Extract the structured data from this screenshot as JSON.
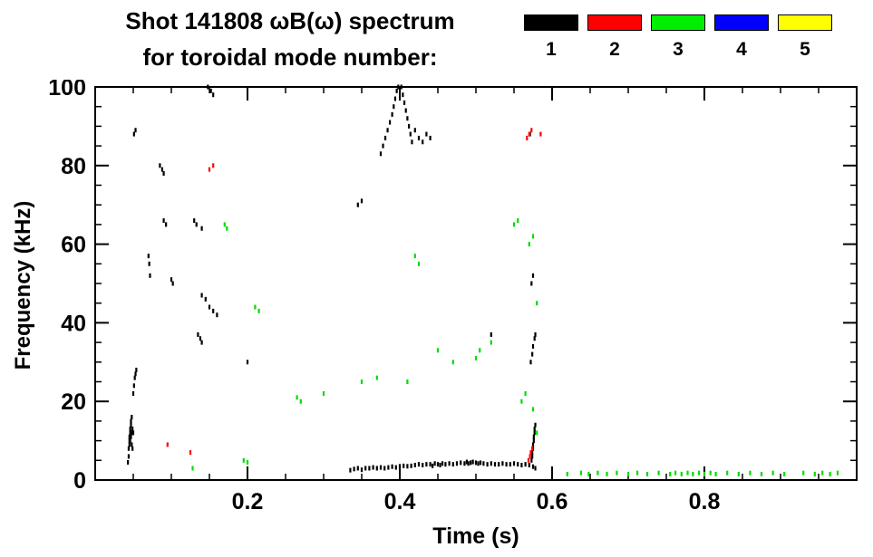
{
  "header": {
    "title_line1": "Shot 141808 ωB(ω) spectrum",
    "title_line2": "for toroidal mode number:"
  },
  "legend": {
    "items": [
      {
        "label": "1",
        "color": "#000000"
      },
      {
        "label": "2",
        "color": "#ff0000"
      },
      {
        "label": "3",
        "color": "#00ee00"
      },
      {
        "label": "4",
        "color": "#0000ff"
      },
      {
        "label": "5",
        "color": "#ffff00"
      }
    ]
  },
  "chart_data": {
    "type": "scatter",
    "title": "Shot 141808 ωB(ω) spectrum for toroidal mode number: 1 2 3 4 5",
    "xlabel": "Time (s)",
    "ylabel": "Frequency (kHz)",
    "xlim": [
      0,
      1.0
    ],
    "ylim": [
      0,
      100
    ],
    "xticks": [
      0.2,
      0.4,
      0.6,
      0.8
    ],
    "xtick_labels": [
      "0.2",
      "0.4",
      "0.6",
      "0.8"
    ],
    "x_minor_step": 0.05,
    "yticks": [
      0,
      20,
      40,
      60,
      80,
      100
    ],
    "ytick_labels": [
      "0",
      "20",
      "40",
      "60",
      "80",
      "100"
    ],
    "y_minor_step": 5,
    "grid": false,
    "legend_position": "top-right",
    "series": [
      {
        "name": "n=1",
        "color": "#000000",
        "points": [
          [
            0.043,
            4.5
          ],
          [
            0.044,
            6
          ],
          [
            0.044,
            8
          ],
          [
            0.045,
            9
          ],
          [
            0.045,
            10
          ],
          [
            0.045,
            11
          ],
          [
            0.046,
            12
          ],
          [
            0.046,
            13
          ],
          [
            0.047,
            14
          ],
          [
            0.047,
            15
          ],
          [
            0.048,
            16
          ],
          [
            0.046,
            10
          ],
          [
            0.047,
            11
          ],
          [
            0.048,
            12
          ],
          [
            0.048,
            9
          ],
          [
            0.049,
            8
          ],
          [
            0.049,
            13
          ],
          [
            0.05,
            12
          ],
          [
            0.05,
            22
          ],
          [
            0.051,
            24
          ],
          [
            0.052,
            26
          ],
          [
            0.053,
            27
          ],
          [
            0.054,
            28
          ],
          [
            0.051,
            88
          ],
          [
            0.053,
            89
          ],
          [
            0.07,
            57
          ],
          [
            0.071,
            55
          ],
          [
            0.072,
            52
          ],
          [
            0.085,
            80
          ],
          [
            0.088,
            79
          ],
          [
            0.09,
            78
          ],
          [
            0.09,
            66
          ],
          [
            0.093,
            65
          ],
          [
            0.1,
            51
          ],
          [
            0.102,
            50
          ],
          [
            0.13,
            66
          ],
          [
            0.133,
            65
          ],
          [
            0.14,
            64
          ],
          [
            0.148,
            100
          ],
          [
            0.152,
            99
          ],
          [
            0.155,
            98
          ],
          [
            0.14,
            47
          ],
          [
            0.145,
            46
          ],
          [
            0.15,
            44
          ],
          [
            0.155,
            43
          ],
          [
            0.16,
            42
          ],
          [
            0.135,
            37
          ],
          [
            0.138,
            36
          ],
          [
            0.14,
            35
          ],
          [
            0.2,
            30
          ],
          [
            0.345,
            70
          ],
          [
            0.35,
            71
          ],
          [
            0.375,
            83
          ],
          [
            0.378,
            85
          ],
          [
            0.381,
            87
          ],
          [
            0.384,
            89
          ],
          [
            0.387,
            91
          ],
          [
            0.39,
            93
          ],
          [
            0.392,
            95
          ],
          [
            0.394,
            97
          ],
          [
            0.396,
            99
          ],
          [
            0.398,
            100
          ],
          [
            0.402,
            100
          ],
          [
            0.404,
            98
          ],
          [
            0.406,
            96
          ],
          [
            0.408,
            94
          ],
          [
            0.41,
            92
          ],
          [
            0.412,
            90
          ],
          [
            0.414,
            88
          ],
          [
            0.416,
            86
          ],
          [
            0.42,
            89
          ],
          [
            0.425,
            87
          ],
          [
            0.43,
            86
          ],
          [
            0.435,
            88
          ],
          [
            0.44,
            87
          ],
          [
            0.335,
            2.5
          ],
          [
            0.34,
            2.8
          ],
          [
            0.345,
            3
          ],
          [
            0.35,
            2.6
          ],
          [
            0.355,
            3
          ],
          [
            0.36,
            3
          ],
          [
            0.365,
            3.2
          ],
          [
            0.37,
            3
          ],
          [
            0.375,
            3.2
          ],
          [
            0.38,
            3
          ],
          [
            0.385,
            3.2
          ],
          [
            0.39,
            3.4
          ],
          [
            0.395,
            3.2
          ],
          [
            0.4,
            3.5
          ],
          [
            0.405,
            3.6
          ],
          [
            0.41,
            3.5
          ],
          [
            0.415,
            3.6
          ],
          [
            0.42,
            3.8
          ],
          [
            0.425,
            4
          ],
          [
            0.43,
            3.8
          ],
          [
            0.435,
            4
          ],
          [
            0.44,
            4
          ],
          [
            0.443,
            3.6
          ],
          [
            0.446,
            4.2
          ],
          [
            0.45,
            4
          ],
          [
            0.453,
            3.8
          ],
          [
            0.456,
            4.2
          ],
          [
            0.46,
            4
          ],
          [
            0.465,
            4.2
          ],
          [
            0.47,
            4
          ],
          [
            0.475,
            4.2
          ],
          [
            0.48,
            4.4
          ],
          [
            0.485,
            4.2
          ],
          [
            0.488,
            4.6
          ],
          [
            0.49,
            4.2
          ],
          [
            0.493,
            4.4
          ],
          [
            0.496,
            4.6
          ],
          [
            0.5,
            4.4
          ],
          [
            0.503,
            4.2
          ],
          [
            0.506,
            4.4
          ],
          [
            0.51,
            4.2
          ],
          [
            0.515,
            4
          ],
          [
            0.52,
            4.2
          ],
          [
            0.525,
            4
          ],
          [
            0.53,
            4
          ],
          [
            0.535,
            4.2
          ],
          [
            0.54,
            4
          ],
          [
            0.545,
            4
          ],
          [
            0.55,
            4.2
          ],
          [
            0.555,
            4
          ],
          [
            0.56,
            3.8
          ],
          [
            0.565,
            4
          ],
          [
            0.57,
            3.8
          ],
          [
            0.575,
            3.4
          ],
          [
            0.578,
            3
          ],
          [
            0.573,
            5
          ],
          [
            0.574,
            6
          ],
          [
            0.574,
            7
          ],
          [
            0.575,
            8
          ],
          [
            0.575,
            9
          ],
          [
            0.576,
            10
          ],
          [
            0.576,
            11
          ],
          [
            0.577,
            12
          ],
          [
            0.577,
            13
          ],
          [
            0.578,
            14
          ],
          [
            0.572,
            30
          ],
          [
            0.574,
            32
          ],
          [
            0.575,
            34
          ],
          [
            0.577,
            36
          ],
          [
            0.578,
            37
          ],
          [
            0.573,
            50
          ],
          [
            0.575,
            52
          ],
          [
            0.571,
            88
          ],
          [
            0.52,
            37
          ]
        ]
      },
      {
        "name": "n=2",
        "color": "#ff0000",
        "points": [
          [
            0.095,
            9
          ],
          [
            0.125,
            7
          ],
          [
            0.15,
            79
          ],
          [
            0.155,
            80
          ],
          [
            0.567,
            87
          ],
          [
            0.57,
            88
          ],
          [
            0.573,
            89
          ],
          [
            0.585,
            88
          ],
          [
            0.569,
            5
          ],
          [
            0.571,
            6
          ],
          [
            0.572,
            7
          ],
          [
            0.574,
            8
          ]
        ]
      },
      {
        "name": "n=3",
        "color": "#00dd00",
        "points": [
          [
            0.128,
            3
          ],
          [
            0.17,
            65
          ],
          [
            0.173,
            64
          ],
          [
            0.195,
            5
          ],
          [
            0.2,
            4.5
          ],
          [
            0.21,
            44
          ],
          [
            0.215,
            43
          ],
          [
            0.265,
            21
          ],
          [
            0.27,
            20
          ],
          [
            0.3,
            22
          ],
          [
            0.35,
            25
          ],
          [
            0.37,
            26
          ],
          [
            0.41,
            25
          ],
          [
            0.42,
            57
          ],
          [
            0.425,
            55
          ],
          [
            0.45,
            33
          ],
          [
            0.47,
            30
          ],
          [
            0.5,
            31
          ],
          [
            0.505,
            33
          ],
          [
            0.52,
            35
          ],
          [
            0.55,
            65
          ],
          [
            0.555,
            66
          ],
          [
            0.57,
            60
          ],
          [
            0.575,
            62
          ],
          [
            0.58,
            45
          ],
          [
            0.56,
            20
          ],
          [
            0.565,
            22
          ],
          [
            0.575,
            18
          ],
          [
            0.58,
            12
          ],
          [
            0.62,
            1.5
          ],
          [
            0.638,
            1.8
          ],
          [
            0.648,
            1.5
          ],
          [
            0.66,
            1.8
          ],
          [
            0.672,
            1.5
          ],
          [
            0.685,
            1.8
          ],
          [
            0.7,
            1.5
          ],
          [
            0.712,
            1.8
          ],
          [
            0.725,
            1.5
          ],
          [
            0.74,
            1.8
          ],
          [
            0.755,
            1.5
          ],
          [
            0.762,
            1.8
          ],
          [
            0.77,
            1.5
          ],
          [
            0.778,
            1.8
          ],
          [
            0.785,
            1.5
          ],
          [
            0.793,
            1.8
          ],
          [
            0.8,
            1.5
          ],
          [
            0.808,
            1.8
          ],
          [
            0.815,
            1.5
          ],
          [
            0.83,
            1.8
          ],
          [
            0.845,
            1.5
          ],
          [
            0.86,
            1.8
          ],
          [
            0.875,
            1.5
          ],
          [
            0.89,
            1.8
          ],
          [
            0.905,
            1.5
          ],
          [
            0.93,
            1.8
          ],
          [
            0.945,
            1.5
          ],
          [
            0.955,
            1.8
          ],
          [
            0.965,
            1.5
          ],
          [
            0.975,
            1.8
          ]
        ]
      },
      {
        "name": "n=4",
        "color": "#0000ff",
        "points": []
      },
      {
        "name": "n=5",
        "color": "#ffff00",
        "points": []
      }
    ]
  }
}
